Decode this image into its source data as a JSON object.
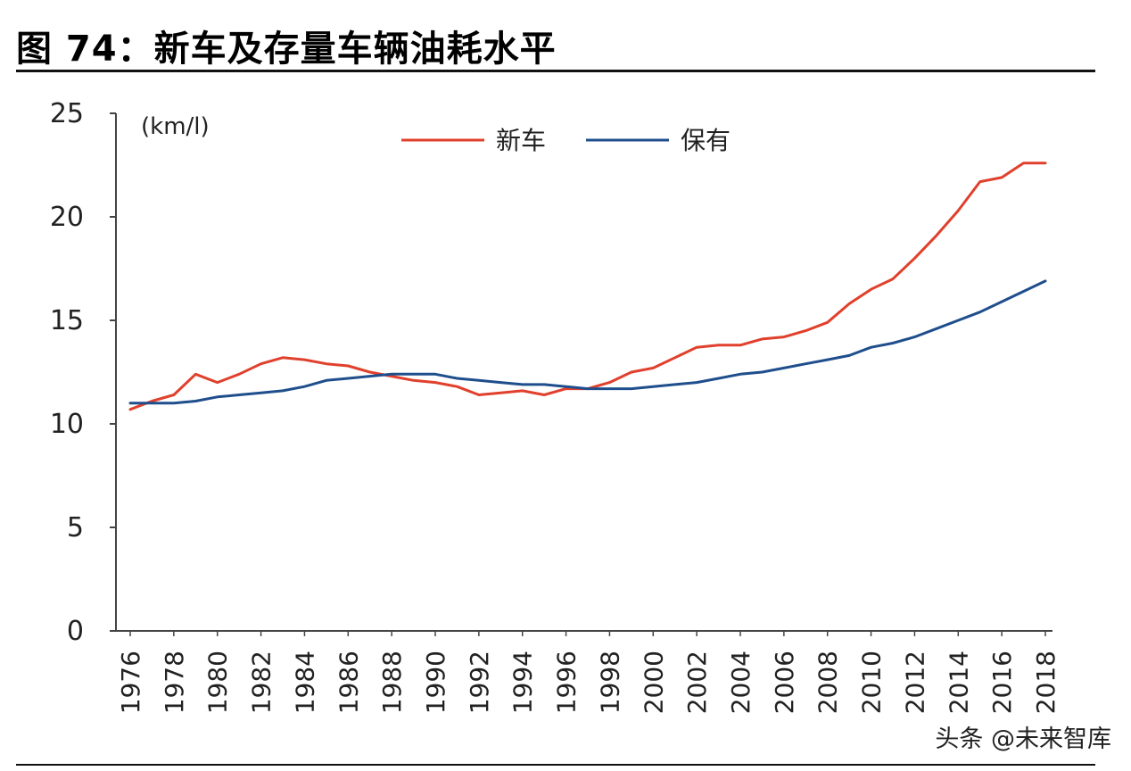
{
  "figure_title": "图 74：新车及存量车辆油耗水平",
  "watermark": "头条 @未来智库",
  "chart_data": {
    "type": "line",
    "title": "",
    "xlabel": "",
    "ylabel": "(km/l)",
    "ylim": [
      0,
      25
    ],
    "xlim": [
      1976,
      2018
    ],
    "yticks": [
      0,
      5,
      10,
      15,
      20,
      25
    ],
    "xticks": [
      "1976",
      "1978",
      "1980",
      "1982",
      "1984",
      "1986",
      "1988",
      "1990",
      "1992",
      "1994",
      "1996",
      "1998",
      "2000",
      "2002",
      "2004",
      "2006",
      "2008",
      "2010",
      "2012",
      "2014",
      "2016",
      "2018"
    ],
    "legend_position": "top-center",
    "grid": false,
    "x": [
      1976,
      1977,
      1978,
      1979,
      1980,
      1981,
      1982,
      1983,
      1984,
      1985,
      1986,
      1987,
      1988,
      1989,
      1990,
      1991,
      1992,
      1993,
      1994,
      1995,
      1996,
      1997,
      1998,
      1999,
      2000,
      2001,
      2002,
      2003,
      2004,
      2005,
      2006,
      2007,
      2008,
      2009,
      2010,
      2011,
      2012,
      2013,
      2014,
      2015,
      2016,
      2017,
      2018
    ],
    "series": [
      {
        "name": "新车",
        "color": "#e0402c",
        "values": [
          10.7,
          11.1,
          11.4,
          12.4,
          12.0,
          12.4,
          12.9,
          13.2,
          13.1,
          12.9,
          12.8,
          12.5,
          12.3,
          12.1,
          12.0,
          11.8,
          11.4,
          11.5,
          11.6,
          11.4,
          11.7,
          11.7,
          12.0,
          12.5,
          12.7,
          13.2,
          13.7,
          13.8,
          13.8,
          14.1,
          14.2,
          14.5,
          14.9,
          15.8,
          16.5,
          17.0,
          18.0,
          19.1,
          20.3,
          21.7,
          21.9,
          22.6,
          22.6
        ]
      },
      {
        "name": "保有",
        "color": "#1f4e8c",
        "values": [
          11.0,
          11.0,
          11.0,
          11.1,
          11.3,
          11.4,
          11.5,
          11.6,
          11.8,
          12.1,
          12.2,
          12.3,
          12.4,
          12.4,
          12.4,
          12.2,
          12.1,
          12.0,
          11.9,
          11.9,
          11.8,
          11.7,
          11.7,
          11.7,
          11.8,
          11.9,
          12.0,
          12.2,
          12.4,
          12.5,
          12.7,
          12.9,
          13.1,
          13.3,
          13.7,
          13.9,
          14.2,
          14.6,
          15.0,
          15.4,
          15.9,
          16.4,
          16.9
        ]
      }
    ]
  }
}
